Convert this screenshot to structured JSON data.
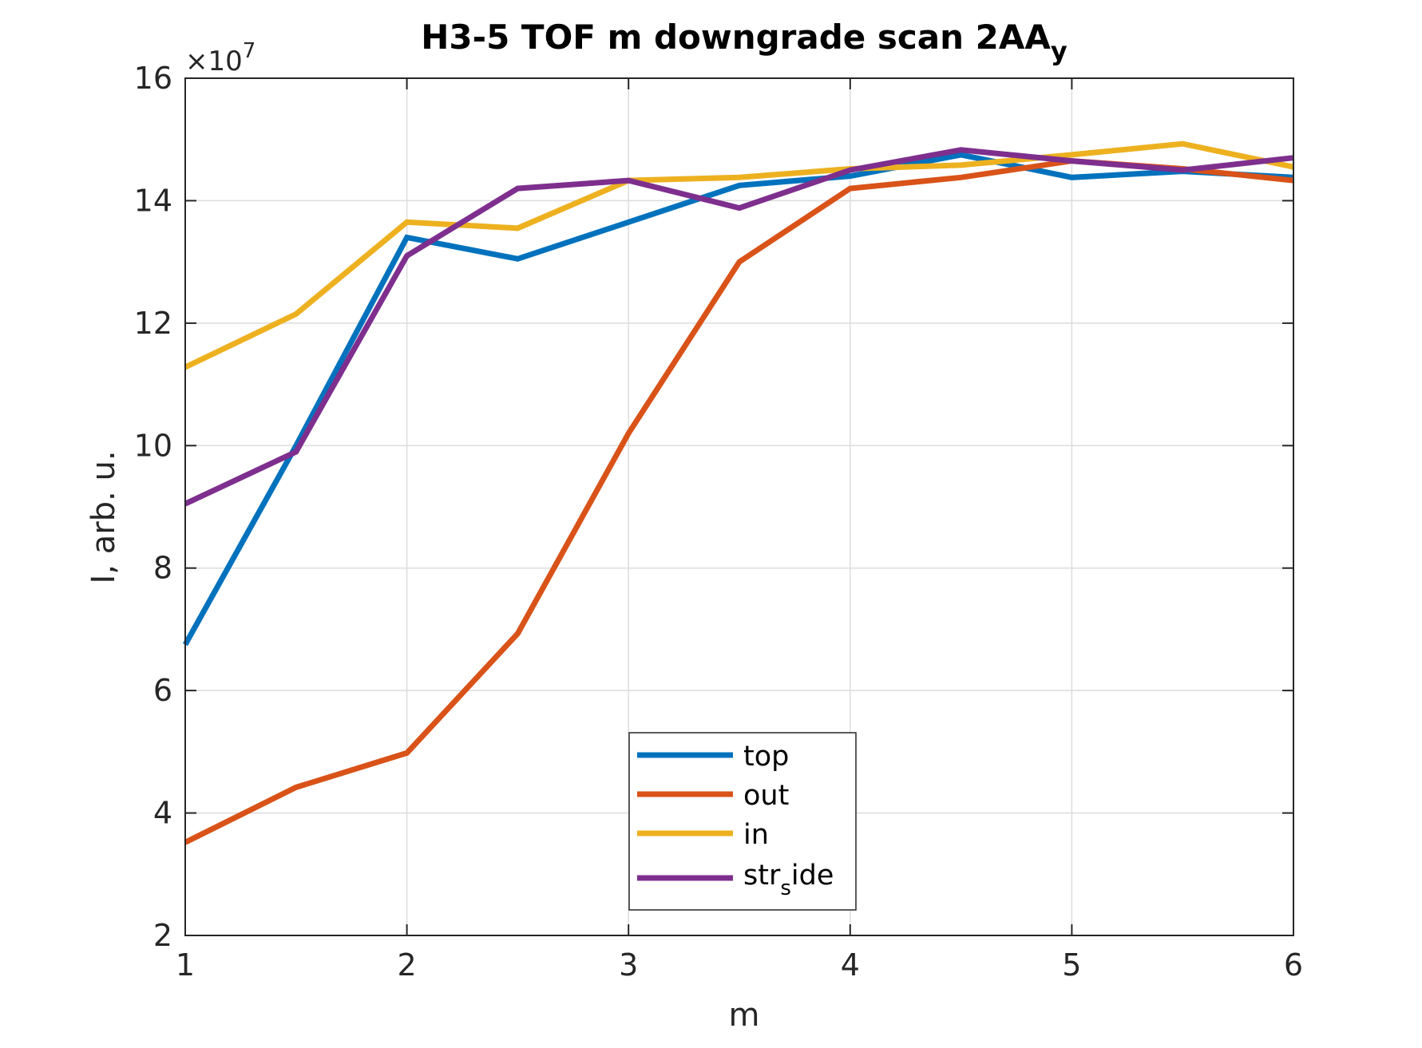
{
  "chart_data": {
    "type": "line",
    "title": "H3-5 TOF m downgrade scan 2AA",
    "title_subscript": "y",
    "xlabel": "m",
    "ylabel": "I, arb. u.",
    "xlim": [
      1,
      6
    ],
    "ylim": [
      2,
      16
    ],
    "xticks": [
      1,
      2,
      3,
      4,
      5,
      6
    ],
    "yticks": [
      2,
      4,
      6,
      8,
      10,
      12,
      14,
      16
    ],
    "y_exponent_multiplier": "×10",
    "y_exponent_power": "7",
    "grid": true,
    "legend_placement": "bottom-center",
    "x": [
      1,
      1.5,
      2,
      2.5,
      3,
      3.5,
      4,
      4.5,
      5,
      5.5,
      6
    ],
    "series": [
      {
        "name": "top",
        "color": "#0072BD",
        "values": [
          6.75,
          10.0,
          13.4,
          13.05,
          13.65,
          14.25,
          14.4,
          14.75,
          14.38,
          14.48,
          14.38
        ]
      },
      {
        "name": "out",
        "color": "#D95319",
        "values": [
          3.52,
          4.42,
          4.98,
          6.93,
          10.2,
          13.0,
          14.2,
          14.38,
          14.65,
          14.52,
          14.33
        ]
      },
      {
        "name": "in",
        "color": "#EDB120",
        "values": [
          11.28,
          12.15,
          13.65,
          13.55,
          14.33,
          14.38,
          14.52,
          14.58,
          14.75,
          14.93,
          14.55
        ]
      },
      {
        "name": "str",
        "name_subscript": "s",
        "name_suffix": "ide",
        "color": "#7E2F8E",
        "values": [
          9.05,
          9.9,
          13.1,
          14.2,
          14.33,
          13.88,
          14.5,
          14.83,
          14.65,
          14.5,
          14.7
        ]
      }
    ]
  }
}
